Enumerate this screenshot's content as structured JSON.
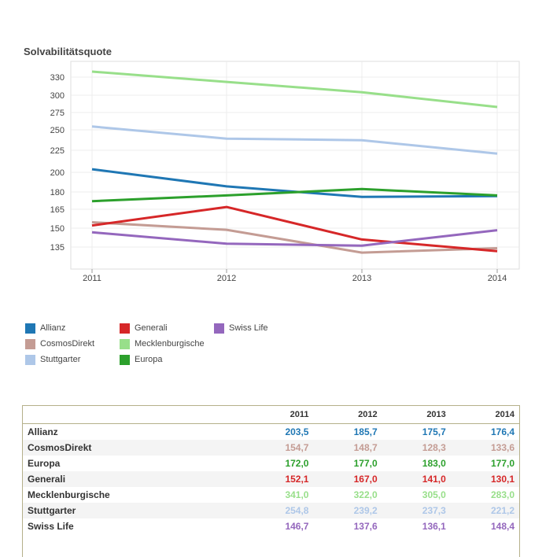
{
  "chart_data": {
    "type": "line",
    "title": "Solvabilitätsquote",
    "x": [
      "2011",
      "2012",
      "2013",
      "2014"
    ],
    "y_ticks": [
      135,
      150,
      165,
      180,
      200,
      225,
      250,
      275,
      300,
      330
    ],
    "ylim": [
      120,
      340
    ],
    "grid": true,
    "series": [
      {
        "name": "Allianz",
        "color": "#1f77b4",
        "values": [
          203.5,
          185.7,
          175.7,
          176.4
        ],
        "display": [
          "203,5",
          "185,7",
          "175,7",
          "176,4"
        ]
      },
      {
        "name": "CosmosDirekt",
        "color": "#c49c94",
        "values": [
          154.7,
          148.7,
          128.3,
          133.6
        ],
        "display": [
          "154,7",
          "148,7",
          "128,3",
          "133,6"
        ]
      },
      {
        "name": "Europa",
        "color": "#2ca02c",
        "values": [
          172.0,
          177.0,
          183.0,
          177.0
        ],
        "display": [
          "172,0",
          "177,0",
          "183,0",
          "177,0"
        ]
      },
      {
        "name": "Generali",
        "color": "#d62728",
        "values": [
          152.1,
          167.0,
          141.0,
          130.1
        ],
        "display": [
          "152,1",
          "167,0",
          "141,0",
          "130,1"
        ]
      },
      {
        "name": "Mecklenburgische",
        "color": "#98df8a",
        "values": [
          341.0,
          322.0,
          305.0,
          283.0
        ],
        "display": [
          "341,0",
          "322,0",
          "305,0",
          "283,0"
        ]
      },
      {
        "name": "Stuttgarter",
        "color": "#aec7e8",
        "values": [
          254.8,
          239.2,
          237.3,
          221.2
        ],
        "display": [
          "254,8",
          "239,2",
          "237,3",
          "221,2"
        ]
      },
      {
        "name": "Swiss Life",
        "color": "#9467bd",
        "values": [
          146.7,
          137.6,
          136.1,
          148.4
        ],
        "display": [
          "146,7",
          "137,6",
          "136,1",
          "148,4"
        ]
      }
    ],
    "legend_order": [
      "Allianz",
      "Generali",
      "Swiss Life",
      "CosmosDirekt",
      "Mecklenburgische",
      "Stuttgarter",
      "Europa"
    ],
    "legend_position": "bottom-left"
  }
}
